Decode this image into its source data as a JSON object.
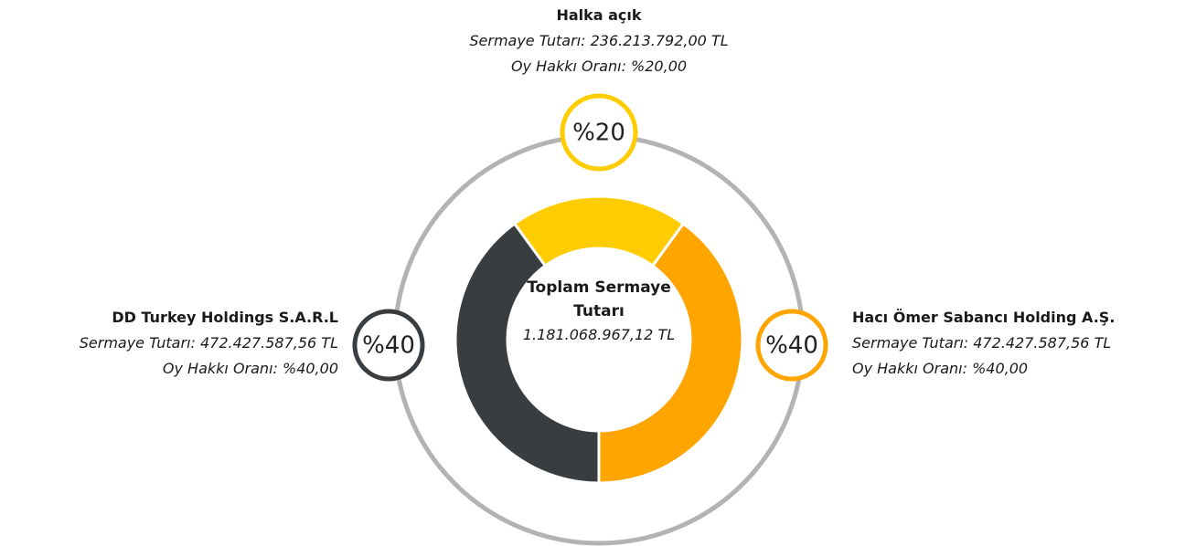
{
  "chart_data": {
    "type": "pie",
    "donut": true,
    "center_title": "Toplam Sermaye Tutarı",
    "center_value": "1.181.068.967,12 TL",
    "categories": [
      "Halka açık",
      "Hacı Ömer Sabancı Holding A.Ş.",
      "DD Turkey Holdings S.A.R.L"
    ],
    "values": [
      20,
      40,
      40
    ],
    "value_labels": [
      "%20",
      "%40",
      "%40"
    ],
    "colors": [
      "#ffcc00",
      "#ffa500",
      "#3a3d40"
    ],
    "details": [
      [
        "Sermaye Tutarı: 236.213.792,00 TL",
        "Oy Hakkı Oranı: %20,00"
      ],
      [
        "Sermaye Tutarı: 472.427.587,56 TL",
        "Oy Hakkı Oranı: %40,00"
      ],
      [
        "Sermaye Tutarı: 472.427.587,56 TL",
        "Oy Hakkı Oranı: %40,00"
      ]
    ]
  }
}
